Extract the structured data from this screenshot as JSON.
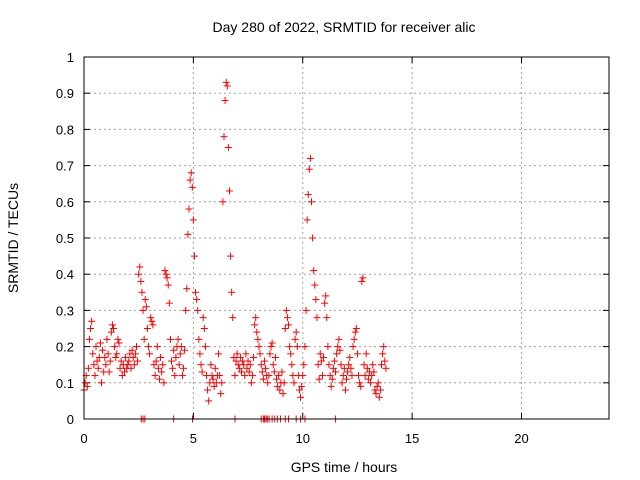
{
  "chart_data": {
    "type": "scatter",
    "title": "Day 280 of 2022, SRMTID for receiver alic",
    "xlabel": "GPS time / hours",
    "ylabel": "SRMTID / TECUs",
    "xlim": [
      0,
      24
    ],
    "ylim": [
      0,
      1
    ],
    "xticks": [
      0,
      5,
      10,
      15,
      20
    ],
    "xtick_labels": [
      "0",
      "5",
      "10",
      "15",
      "20"
    ],
    "yticks": [
      0,
      0.1,
      0.2,
      0.3,
      0.4,
      0.5,
      0.6,
      0.7,
      0.8,
      0.9,
      1
    ],
    "ytick_labels": [
      "0",
      "0.1",
      "0.2",
      "0.3",
      "0.4",
      "0.5",
      "0.6",
      "0.7",
      "0.8",
      "0.9",
      "1"
    ],
    "grid": true,
    "marker": "+",
    "color": "#ff0000",
    "series": [
      {
        "name": "SRMTID",
        "points": [
          [
            0.0,
            0.08
          ],
          [
            0.05,
            0.1
          ],
          [
            0.1,
            0.12
          ],
          [
            0.15,
            0.09
          ],
          [
            0.2,
            0.14
          ],
          [
            0.25,
            0.22
          ],
          [
            0.3,
            0.25
          ],
          [
            0.35,
            0.27
          ],
          [
            0.4,
            0.18
          ],
          [
            0.45,
            0.15
          ],
          [
            0.5,
            0.12
          ],
          [
            0.55,
            0.2
          ],
          [
            0.6,
            0.16
          ],
          [
            0.65,
            0.14
          ],
          [
            0.7,
            0.17
          ],
          [
            0.75,
            0.21
          ],
          [
            0.8,
            0.1
          ],
          [
            0.85,
            0.19
          ],
          [
            0.9,
            0.13
          ],
          [
            0.95,
            0.17
          ],
          [
            1.0,
            0.15
          ],
          [
            1.05,
            0.22
          ],
          [
            1.1,
            0.18
          ],
          [
            1.15,
            0.13
          ],
          [
            1.2,
            0.16
          ],
          [
            1.25,
            0.24
          ],
          [
            1.3,
            0.26
          ],
          [
            1.35,
            0.25
          ],
          [
            1.4,
            0.2
          ],
          [
            1.45,
            0.17
          ],
          [
            1.5,
            0.18
          ],
          [
            1.55,
            0.22
          ],
          [
            1.6,
            0.21
          ],
          [
            1.65,
            0.14
          ],
          [
            1.7,
            0.16
          ],
          [
            1.75,
            0.12
          ],
          [
            1.8,
            0.15
          ],
          [
            1.85,
            0.13
          ],
          [
            1.9,
            0.17
          ],
          [
            1.95,
            0.14
          ],
          [
            2.0,
            0.15
          ],
          [
            2.05,
            0.16
          ],
          [
            2.1,
            0.18
          ],
          [
            2.15,
            0.14
          ],
          [
            2.2,
            0.19
          ],
          [
            2.25,
            0.17
          ],
          [
            2.3,
            0.15
          ],
          [
            2.35,
            0.18
          ],
          [
            2.4,
            0.2
          ],
          [
            2.45,
            0.16
          ],
          [
            2.5,
            0.4
          ],
          [
            2.55,
            0.42
          ],
          [
            2.6,
            0.38
          ],
          [
            2.65,
            0.35
          ],
          [
            2.7,
            0.3
          ],
          [
            2.75,
            0.22
          ],
          [
            2.8,
            0.33
          ],
          [
            2.85,
            0.31
          ],
          [
            2.9,
            0.25
          ],
          [
            2.95,
            0.2
          ],
          [
            3.0,
            0.18
          ],
          [
            3.05,
            0.28
          ],
          [
            3.1,
            0.27
          ],
          [
            3.15,
            0.26
          ],
          [
            3.2,
            0.15
          ],
          [
            3.25,
            0.12
          ],
          [
            3.3,
            0.16
          ],
          [
            3.35,
            0.2
          ],
          [
            3.4,
            0.14
          ],
          [
            3.45,
            0.11
          ],
          [
            3.5,
            0.17
          ],
          [
            3.55,
            0.13
          ],
          [
            3.6,
            0.15
          ],
          [
            3.65,
            0.1
          ],
          [
            3.7,
            0.41
          ],
          [
            3.75,
            0.4
          ],
          [
            3.8,
            0.39
          ],
          [
            3.85,
            0.37
          ],
          [
            3.9,
            0.32
          ],
          [
            3.95,
            0.22
          ],
          [
            4.0,
            0.16
          ],
          [
            4.05,
            0.14
          ],
          [
            4.1,
            0.19
          ],
          [
            4.15,
            0.12
          ],
          [
            4.2,
            0.17
          ],
          [
            4.25,
            0.2
          ],
          [
            4.3,
            0.22
          ],
          [
            4.35,
            0.15
          ],
          [
            4.4,
            0.18
          ],
          [
            4.45,
            0.2
          ],
          [
            4.5,
            0.12
          ],
          [
            4.55,
            0.14
          ],
          [
            4.6,
            0.19
          ],
          [
            4.65,
            0.3
          ],
          [
            4.7,
            0.36
          ],
          [
            4.75,
            0.51
          ],
          [
            4.8,
            0.58
          ],
          [
            4.85,
            0.66
          ],
          [
            4.9,
            0.68
          ],
          [
            4.95,
            0.64
          ],
          [
            5.0,
            0.55
          ],
          [
            5.05,
            0.45
          ],
          [
            5.1,
            0.35
          ],
          [
            5.15,
            0.33
          ],
          [
            5.2,
            0.3
          ],
          [
            5.25,
            0.22
          ],
          [
            5.3,
            0.18
          ],
          [
            5.35,
            0.15
          ],
          [
            5.4,
            0.13
          ],
          [
            5.45,
            0.28
          ],
          [
            5.5,
            0.25
          ],
          [
            5.55,
            0.2
          ],
          [
            5.6,
            0.12
          ],
          [
            5.65,
            0.08
          ],
          [
            5.7,
            0.05
          ],
          [
            5.75,
            0.1
          ],
          [
            5.8,
            0.15
          ],
          [
            5.85,
            0.12
          ],
          [
            5.9,
            0.11
          ],
          [
            5.95,
            0.09
          ],
          [
            6.0,
            0.14
          ],
          [
            6.05,
            0.1
          ],
          [
            6.1,
            0.12
          ],
          [
            6.15,
            0.18
          ],
          [
            6.2,
            0.12
          ],
          [
            6.25,
            0.07
          ],
          [
            6.3,
            0.1
          ],
          [
            6.35,
            0.6
          ],
          [
            6.4,
            0.78
          ],
          [
            6.45,
            0.88
          ],
          [
            6.5,
            0.93
          ],
          [
            6.55,
            0.92
          ],
          [
            6.6,
            0.75
          ],
          [
            6.65,
            0.63
          ],
          [
            6.7,
            0.45
          ],
          [
            6.75,
            0.35
          ],
          [
            6.8,
            0.28
          ],
          [
            6.85,
            0.17
          ],
          [
            6.9,
            0.12
          ],
          [
            6.95,
            0.16
          ],
          [
            7.0,
            0.18
          ],
          [
            7.05,
            0.15
          ],
          [
            7.1,
            0.14
          ],
          [
            7.15,
            0.17
          ],
          [
            7.2,
            0.13
          ],
          [
            7.25,
            0.16
          ],
          [
            7.3,
            0.15
          ],
          [
            7.35,
            0.12
          ],
          [
            7.4,
            0.18
          ],
          [
            7.45,
            0.14
          ],
          [
            7.5,
            0.16
          ],
          [
            7.55,
            0.13
          ],
          [
            7.6,
            0.15
          ],
          [
            7.65,
            0.1
          ],
          [
            7.7,
            0.12
          ],
          [
            7.75,
            0.17
          ],
          [
            7.8,
            0.26
          ],
          [
            7.85,
            0.28
          ],
          [
            7.9,
            0.24
          ],
          [
            7.95,
            0.22
          ],
          [
            8.0,
            0.2
          ],
          [
            8.05,
            0.18
          ],
          [
            8.1,
            0.15
          ],
          [
            8.15,
            0.13
          ],
          [
            8.2,
            0.11
          ],
          [
            8.25,
            0.16
          ],
          [
            8.3,
            0.14
          ],
          [
            8.35,
            0.12
          ],
          [
            8.4,
            0.1
          ],
          [
            8.45,
            0.12
          ],
          [
            8.5,
            0.18
          ],
          [
            8.55,
            0.2
          ],
          [
            8.6,
            0.21
          ],
          [
            8.65,
            0.15
          ],
          [
            8.7,
            0.13
          ],
          [
            8.75,
            0.17
          ],
          [
            8.8,
            0.11
          ],
          [
            8.85,
            0.09
          ],
          [
            8.9,
            0.12
          ],
          [
            8.95,
            0.08
          ],
          [
            9.0,
            0.1
          ],
          [
            9.05,
            0.13
          ],
          [
            9.1,
            0.07
          ],
          [
            9.15,
            0.1
          ],
          [
            9.2,
            0.25
          ],
          [
            9.25,
            0.3
          ],
          [
            9.3,
            0.28
          ],
          [
            9.35,
            0.26
          ],
          [
            9.4,
            0.2
          ],
          [
            9.45,
            0.18
          ],
          [
            9.5,
            0.15
          ],
          [
            9.55,
            0.12
          ],
          [
            9.6,
            0.1
          ],
          [
            9.65,
            0.22
          ],
          [
            9.7,
            0.24
          ],
          [
            9.75,
            0.2
          ],
          [
            9.8,
            0.12
          ],
          [
            9.85,
            0.08
          ],
          [
            9.9,
            0.06
          ],
          [
            9.95,
            0.09
          ],
          [
            10.0,
            0.12
          ],
          [
            10.05,
            0.15
          ],
          [
            10.1,
            0.2
          ],
          [
            10.15,
            0.3
          ],
          [
            10.2,
            0.55
          ],
          [
            10.25,
            0.62
          ],
          [
            10.3,
            0.69
          ],
          [
            10.35,
            0.72
          ],
          [
            10.4,
            0.6
          ],
          [
            10.45,
            0.5
          ],
          [
            10.5,
            0.41
          ],
          [
            10.55,
            0.37
          ],
          [
            10.6,
            0.33
          ],
          [
            10.65,
            0.28
          ],
          [
            10.7,
            0.15
          ],
          [
            10.75,
            0.11
          ],
          [
            10.8,
            0.18
          ],
          [
            10.85,
            0.16
          ],
          [
            10.9,
            0.12
          ],
          [
            10.95,
            0.17
          ],
          [
            11.0,
            0.32
          ],
          [
            11.05,
            0.34
          ],
          [
            11.1,
            0.28
          ],
          [
            11.15,
            0.2
          ],
          [
            11.2,
            0.15
          ],
          [
            11.25,
            0.12
          ],
          [
            11.3,
            0.09
          ],
          [
            11.35,
            0.11
          ],
          [
            11.4,
            0.14
          ],
          [
            11.45,
            0.16
          ],
          [
            11.5,
            0.13
          ],
          [
            11.55,
            0.18
          ],
          [
            11.6,
            0.2
          ],
          [
            11.65,
            0.22
          ],
          [
            11.7,
            0.19
          ],
          [
            11.75,
            0.15
          ],
          [
            11.8,
            0.1
          ],
          [
            11.85,
            0.12
          ],
          [
            11.9,
            0.14
          ],
          [
            11.95,
            0.08
          ],
          [
            12.0,
            0.11
          ],
          [
            12.05,
            0.13
          ],
          [
            12.1,
            0.15
          ],
          [
            12.15,
            0.17
          ],
          [
            12.2,
            0.14
          ],
          [
            12.25,
            0.12
          ],
          [
            12.3,
            0.2
          ],
          [
            12.35,
            0.22
          ],
          [
            12.4,
            0.24
          ],
          [
            12.45,
            0.25
          ],
          [
            12.5,
            0.18
          ],
          [
            12.55,
            0.12
          ],
          [
            12.6,
            0.1
          ],
          [
            12.65,
            0.09
          ],
          [
            12.7,
            0.38
          ],
          [
            12.75,
            0.39
          ],
          [
            12.8,
            0.15
          ],
          [
            12.85,
            0.12
          ],
          [
            12.9,
            0.18
          ],
          [
            12.95,
            0.14
          ],
          [
            13.0,
            0.11
          ],
          [
            13.05,
            0.13
          ],
          [
            13.1,
            0.1
          ],
          [
            13.15,
            0.12
          ],
          [
            13.2,
            0.15
          ],
          [
            13.25,
            0.13
          ],
          [
            13.3,
            0.08
          ],
          [
            13.35,
            0.07
          ],
          [
            13.4,
            0.09
          ],
          [
            13.45,
            0.1
          ],
          [
            13.5,
            0.06
          ],
          [
            13.55,
            0.08
          ],
          [
            13.6,
            0.15
          ],
          [
            13.65,
            0.18
          ],
          [
            13.7,
            0.2
          ],
          [
            13.75,
            0.16
          ],
          [
            13.8,
            0.14
          ]
        ],
        "zero_points": [
          2.62,
          2.7,
          2.78,
          4.1,
          4.96,
          6.9,
          8.1,
          8.2,
          8.25,
          8.32,
          8.38,
          8.46,
          8.6,
          8.72,
          8.85,
          8.98,
          9.2,
          9.35,
          9.7,
          9.9,
          10.1,
          11.5
        ]
      }
    ]
  }
}
